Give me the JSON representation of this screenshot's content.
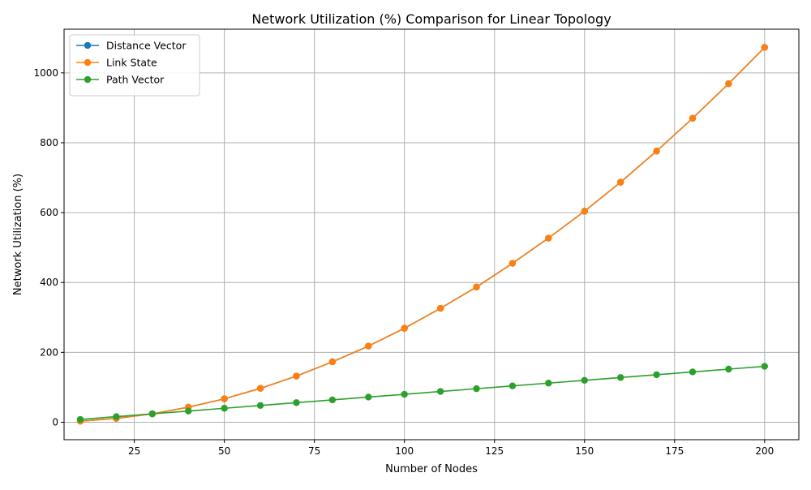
{
  "chart_data": {
    "type": "line",
    "title": "Network Utilization (%) Comparison for Linear Topology",
    "xlabel": "Number of Nodes",
    "ylabel": "Network Utilization (%)",
    "xlim": [
      5.5,
      209.5
    ],
    "ylim": [
      -50,
      1125
    ],
    "xticks": [
      25,
      50,
      75,
      100,
      125,
      150,
      175,
      200
    ],
    "yticks": [
      0,
      200,
      400,
      600,
      800,
      1000
    ],
    "grid": true,
    "legend_position": "upper-left",
    "x": [
      10,
      20,
      30,
      40,
      50,
      60,
      70,
      80,
      90,
      100,
      110,
      120,
      130,
      140,
      150,
      160,
      170,
      180,
      190,
      200
    ],
    "series": [
      {
        "name": "Distance Vector",
        "color": "#1f77b4",
        "values": [
          3,
          11,
          24,
          43,
          67,
          97,
          132,
          173,
          218,
          269,
          326,
          387,
          455,
          527,
          604,
          687,
          776,
          870,
          969,
          1073
        ]
      },
      {
        "name": "Link State",
        "color": "#ff7f0e",
        "values": [
          3,
          11,
          24,
          43,
          67,
          97,
          132,
          173,
          218,
          269,
          326,
          387,
          455,
          527,
          604,
          687,
          776,
          870,
          969,
          1073
        ]
      },
      {
        "name": "Path Vector",
        "color": "#2ca02c",
        "values": [
          8,
          16,
          24,
          32,
          40,
          48,
          56,
          64,
          72,
          80,
          88,
          96,
          104,
          112,
          120,
          128,
          136,
          144,
          152,
          160
        ]
      }
    ]
  }
}
